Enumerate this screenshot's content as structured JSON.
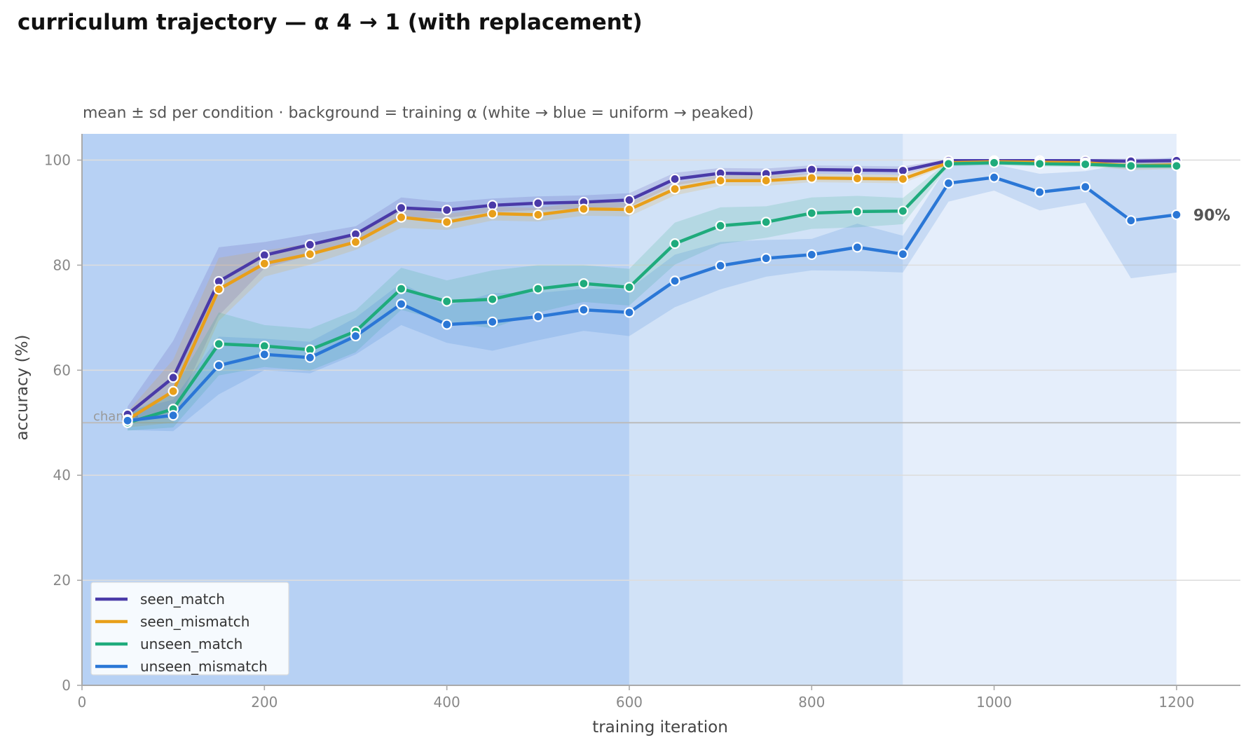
{
  "title": "curriculum trajectory — α 4 → 1 (with replacement)",
  "chart_data": {
    "type": "line",
    "subtitle": "mean ± sd per condition · background = training α (white → blue = uniform → peaked)",
    "xlabel": "training iteration",
    "ylabel": "accuracy (%)",
    "xlim": [
      0,
      1270
    ],
    "ylim": [
      0,
      105
    ],
    "xticks": [
      0,
      200,
      400,
      600,
      800,
      1000,
      1200
    ],
    "yticks": [
      0,
      20,
      40,
      60,
      80,
      100
    ],
    "grid": "horizontal",
    "legend_position": "bottom-left",
    "chance_line": {
      "y": 50,
      "label": "chance"
    },
    "end_annotation": {
      "series": "unseen_mismatch",
      "x": 1200,
      "y": 89.6,
      "text": "90%"
    },
    "background_bands": [
      {
        "x0": 0,
        "x1": 600,
        "color": "#b7d1f4"
      },
      {
        "x0": 600,
        "x1": 900,
        "color": "#d1e2f7"
      },
      {
        "x0": 900,
        "x1": 1200,
        "color": "#e5eefb"
      }
    ],
    "x": [
      50,
      100,
      150,
      200,
      250,
      300,
      350,
      400,
      450,
      500,
      550,
      600,
      650,
      700,
      750,
      800,
      850,
      900,
      950,
      1000,
      1050,
      1100,
      1150,
      1200
    ],
    "series": [
      {
        "name": "seen_match",
        "color": "#4a3aa8",
        "values": [
          51.6,
          58.6,
          76.9,
          81.9,
          83.9,
          85.9,
          90.9,
          90.5,
          91.4,
          91.8,
          92.0,
          92.4,
          96.4,
          97.5,
          97.4,
          98.2,
          98.1,
          98.0,
          99.9,
          99.9,
          99.9,
          99.9,
          99.8,
          99.9
        ],
        "sd": [
          1.5,
          7.0,
          6.5,
          2.5,
          2.0,
          1.5,
          2.0,
          1.5,
          1.3,
          1.3,
          1.3,
          1.3,
          1.2,
          1.0,
          1.0,
          0.8,
          0.8,
          0.8,
          0.3,
          0.3,
          0.3,
          0.3,
          0.5,
          0.5
        ]
      },
      {
        "name": "seen_mismatch",
        "color": "#e89f1a",
        "values": [
          50.6,
          56.0,
          75.4,
          80.3,
          82.1,
          84.4,
          89.1,
          88.2,
          89.8,
          89.6,
          90.7,
          90.6,
          94.5,
          96.1,
          96.1,
          96.6,
          96.5,
          96.4,
          99.5,
          99.7,
          99.6,
          99.5,
          98.9,
          99.1
        ],
        "sd": [
          1.5,
          6.0,
          6.0,
          2.5,
          2.0,
          1.5,
          2.0,
          1.5,
          1.3,
          1.3,
          1.3,
          1.3,
          1.2,
          1.0,
          1.0,
          0.8,
          0.8,
          0.8,
          0.5,
          0.4,
          0.5,
          0.5,
          0.8,
          0.8
        ]
      },
      {
        "name": "unseen_match",
        "color": "#1fab7c",
        "values": [
          50.0,
          52.6,
          65.0,
          64.6,
          63.9,
          67.4,
          75.5,
          73.1,
          73.5,
          75.5,
          76.5,
          75.8,
          84.1,
          87.5,
          88.2,
          89.9,
          90.2,
          90.3,
          99.3,
          99.5,
          99.3,
          99.2,
          98.9,
          98.9
        ],
        "sd": [
          1.5,
          3.5,
          6.0,
          4.0,
          4.0,
          4.0,
          4.0,
          4.0,
          5.5,
          4.5,
          3.5,
          3.5,
          4.0,
          3.5,
          3.0,
          3.0,
          3.0,
          2.5,
          0.5,
          0.5,
          0.5,
          0.5,
          0.5,
          0.5
        ]
      },
      {
        "name": "unseen_mismatch",
        "color": "#2b77d6",
        "values": [
          50.4,
          51.4,
          60.9,
          63.0,
          62.4,
          66.5,
          72.6,
          68.7,
          69.2,
          70.2,
          71.5,
          71.0,
          77.0,
          79.9,
          81.3,
          82.0,
          83.4,
          82.1,
          95.6,
          96.7,
          93.9,
          94.9,
          88.5,
          89.6
        ],
        "sd": [
          1.8,
          3.0,
          5.5,
          3.0,
          3.0,
          3.5,
          4.0,
          3.5,
          5.5,
          4.5,
          4.0,
          4.5,
          5.0,
          4.5,
          3.5,
          3.0,
          4.5,
          3.5,
          3.5,
          2.5,
          3.5,
          3.0,
          11.0,
          11.0
        ]
      }
    ]
  }
}
